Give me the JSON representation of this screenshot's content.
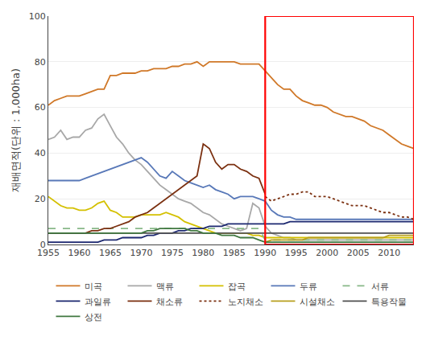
{
  "chart_data": {
    "type": "line",
    "ylabel": "재배면적(단위 : 1,000ha)",
    "x": [
      1955,
      1956,
      1957,
      1958,
      1959,
      1960,
      1961,
      1962,
      1963,
      1964,
      1965,
      1966,
      1967,
      1968,
      1969,
      1970,
      1971,
      1972,
      1973,
      1974,
      1975,
      1976,
      1977,
      1978,
      1979,
      1980,
      1981,
      1982,
      1983,
      1984,
      1985,
      1986,
      1987,
      1988,
      1989,
      1990,
      1991,
      1992,
      1993,
      1994,
      1995,
      1996,
      1997,
      1998,
      1999,
      2000,
      2001,
      2002,
      2003,
      2004,
      2005,
      2006,
      2007,
      2008,
      2009,
      2010,
      2011,
      2012,
      2013,
      2014
    ],
    "xlim": [
      1955,
      2014
    ],
    "xticks": [
      1955,
      1960,
      1965,
      1970,
      1975,
      1980,
      1985,
      1990,
      1995,
      2000,
      2005,
      2010
    ],
    "ylim": [
      0,
      100
    ],
    "yticks": [
      0,
      20,
      40,
      60,
      80,
      100
    ],
    "grid": true,
    "legend": "bottom",
    "highlight": {
      "from": 1990,
      "color": "red"
    },
    "series": [
      {
        "name": "미곡",
        "color": "#D07828",
        "line_style": "solid",
        "values": [
          61,
          63,
          64,
          65,
          65,
          65,
          66,
          67,
          68,
          68,
          74,
          74,
          75,
          75,
          75,
          76,
          76,
          77,
          77,
          77,
          78,
          78,
          79,
          79,
          80,
          78,
          80,
          80,
          80,
          80,
          80,
          79,
          79,
          79,
          79,
          76,
          73,
          70,
          68,
          68,
          65,
          63,
          62,
          61,
          61,
          60,
          58,
          57,
          56,
          56,
          55,
          54,
          52,
          51,
          50,
          48,
          46,
          44,
          43,
          42
        ]
      },
      {
        "name": "맥류",
        "color": "#A8A8A8",
        "line_style": "solid",
        "values": [
          46,
          47,
          50,
          46,
          47,
          47,
          50,
          51,
          55,
          57,
          52,
          47,
          44,
          40,
          37,
          35,
          32,
          29,
          26,
          24,
          22,
          20,
          19,
          18,
          16,
          14,
          13,
          11,
          9,
          8,
          7,
          6,
          7,
          18,
          16,
          8,
          5,
          4,
          3,
          3,
          2,
          2,
          2,
          2,
          2,
          2,
          2,
          2,
          2,
          2,
          2,
          2,
          2,
          2,
          2,
          2,
          2,
          2,
          2,
          2
        ]
      },
      {
        "name": "잡곡",
        "color": "#D4C000",
        "line_style": "solid",
        "values": [
          21,
          19,
          17,
          16,
          16,
          15,
          15,
          16,
          18,
          19,
          15,
          14,
          12,
          12,
          12,
          13,
          13,
          13,
          13,
          14,
          13,
          12,
          10,
          9,
          8,
          7,
          6,
          5,
          5,
          5,
          5,
          5,
          5,
          4,
          4,
          3,
          3,
          3,
          3,
          3,
          3,
          3,
          3,
          3,
          3,
          3,
          3,
          3,
          3,
          3,
          3,
          3,
          3,
          3,
          3,
          3,
          3,
          3,
          3,
          3
        ]
      },
      {
        "name": "두류",
        "color": "#5878B8",
        "line_style": "solid",
        "values": [
          28,
          28,
          28,
          28,
          28,
          28,
          29,
          30,
          31,
          32,
          33,
          34,
          35,
          36,
          37,
          38,
          36,
          33,
          30,
          29,
          32,
          30,
          28,
          27,
          26,
          25,
          26,
          24,
          23,
          22,
          20,
          21,
          21,
          21,
          20,
          19,
          15,
          13,
          12,
          12,
          11,
          11,
          11,
          11,
          11,
          11,
          11,
          11,
          11,
          11,
          11,
          11,
          11,
          11,
          11,
          11,
          11,
          11,
          11,
          11
        ]
      },
      {
        "name": "서류",
        "color": "#88B888",
        "line_style": "dashed",
        "values": [
          7,
          7,
          7,
          7,
          7,
          7,
          7,
          7,
          7,
          7,
          7,
          7,
          7,
          7,
          7,
          7,
          7,
          7,
          7,
          7,
          7,
          7,
          7,
          7,
          7,
          7,
          7,
          7,
          7,
          7,
          7,
          7,
          7,
          7,
          7,
          2,
          2,
          2,
          2,
          2,
          2,
          2,
          2,
          2,
          2,
          2,
          2,
          2,
          2,
          2,
          2,
          2,
          2,
          2,
          2,
          2,
          2,
          2,
          2,
          2
        ]
      },
      {
        "name": "과일류",
        "color": "#1C2870",
        "line_style": "solid",
        "values": [
          1,
          1,
          1,
          1,
          1,
          1,
          1,
          1,
          1,
          2,
          2,
          2,
          3,
          3,
          3,
          3,
          4,
          4,
          5,
          5,
          5,
          6,
          6,
          7,
          7,
          7,
          8,
          8,
          8,
          9,
          9,
          9,
          9,
          9,
          9,
          9,
          9,
          9,
          9,
          10,
          10,
          10,
          10,
          10,
          10,
          10,
          10,
          10,
          10,
          10,
          10,
          10,
          10,
          10,
          10,
          10,
          10,
          10,
          10,
          10
        ]
      },
      {
        "name": "채소류",
        "color": "#7B3010",
        "line_style": "solid",
        "values": [
          5,
          5,
          5,
          5,
          5,
          5,
          5,
          6,
          6,
          7,
          7,
          8,
          9,
          10,
          12,
          13,
          14,
          16,
          18,
          20,
          22,
          24,
          26,
          28,
          30,
          44,
          42,
          36,
          33,
          35,
          35,
          33,
          32,
          30,
          29,
          22,
          null,
          null,
          null,
          null,
          null,
          null,
          null,
          null,
          null,
          null,
          null,
          null,
          null,
          null,
          null,
          null,
          null,
          null,
          null,
          null,
          null,
          null,
          null,
          null
        ]
      },
      {
        "name": "노지채소",
        "color": "#7B3010",
        "line_style": "dotted",
        "values": [
          null,
          null,
          null,
          null,
          null,
          null,
          null,
          null,
          null,
          null,
          null,
          null,
          null,
          null,
          null,
          null,
          null,
          null,
          null,
          null,
          null,
          null,
          null,
          null,
          null,
          null,
          null,
          null,
          null,
          null,
          null,
          null,
          null,
          null,
          null,
          21,
          19,
          20,
          21,
          22,
          22,
          23,
          23,
          21,
          21,
          21,
          20,
          19,
          18,
          17,
          17,
          17,
          16,
          15,
          14,
          14,
          13,
          12,
          12,
          11
        ]
      },
      {
        "name": "시설채소",
        "color": "#B8A020",
        "line_style": "solid",
        "values": [
          null,
          null,
          null,
          null,
          null,
          null,
          null,
          null,
          null,
          null,
          null,
          null,
          null,
          null,
          null,
          null,
          null,
          null,
          null,
          null,
          null,
          null,
          null,
          null,
          null,
          null,
          null,
          null,
          null,
          null,
          null,
          null,
          null,
          null,
          null,
          1,
          2,
          2,
          2,
          2,
          2,
          2,
          3,
          3,
          3,
          3,
          3,
          3,
          3,
          3,
          3,
          3,
          3,
          3,
          3,
          4,
          4,
          4,
          4,
          4
        ]
      },
      {
        "name": "특용작물",
        "color": "#505050",
        "line_style": "solid",
        "values": [
          5,
          5,
          5,
          5,
          5,
          5,
          5,
          5,
          5,
          5,
          5,
          5,
          5,
          5,
          5,
          5,
          5,
          5,
          5,
          5,
          5,
          5,
          5,
          5,
          5,
          5,
          5,
          5,
          5,
          5,
          5,
          5,
          5,
          5,
          5,
          5,
          5,
          5,
          5,
          5,
          5,
          5,
          5,
          5,
          5,
          5,
          5,
          5,
          5,
          5,
          5,
          5,
          5,
          5,
          5,
          5,
          5,
          5,
          5,
          5
        ]
      },
      {
        "name": "상전",
        "color": "#407840",
        "line_style": "solid",
        "values": [
          5,
          5,
          5,
          5,
          5,
          5,
          5,
          5,
          5,
          5,
          5,
          5,
          5,
          5,
          5,
          5,
          6,
          6,
          7,
          7,
          7,
          7,
          7,
          6,
          6,
          5,
          5,
          5,
          4,
          4,
          4,
          3,
          3,
          3,
          2,
          1,
          1,
          1,
          1,
          1,
          1,
          1,
          1,
          1,
          1,
          1,
          1,
          1,
          1,
          1,
          1,
          1,
          1,
          1,
          1,
          1,
          1,
          1,
          1,
          1
        ]
      }
    ]
  }
}
